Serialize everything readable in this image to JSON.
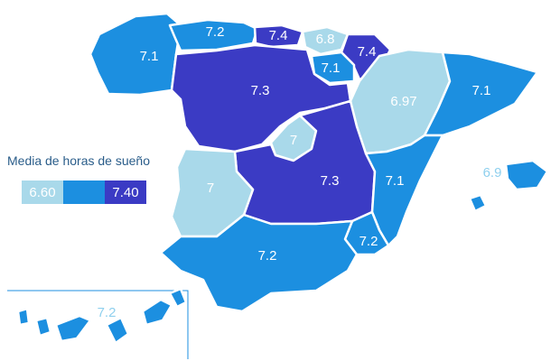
{
  "legend": {
    "title": "Media de horas de sueño",
    "min_label": "6.60",
    "max_label": "7.40",
    "colors": {
      "low": "#a9d9ea",
      "mid": "#1c8fe0",
      "high": "#3b3bc4"
    }
  },
  "regions": {
    "galicia": "7.1",
    "asturias": "7.2",
    "cantabria": "7.4",
    "pais_vasco": "6.8",
    "navarra": "7.4",
    "la_rioja": "7.1",
    "castilla_leon": "7.3",
    "aragon": "6.97",
    "cataluna": "7.1",
    "madrid": "7",
    "castilla_la_mancha": "7.3",
    "extremadura": "7",
    "valencia": "7.1",
    "baleares": "6.9",
    "murcia": "7.2",
    "andalucia": "7.2",
    "canarias": "7.2"
  }
}
